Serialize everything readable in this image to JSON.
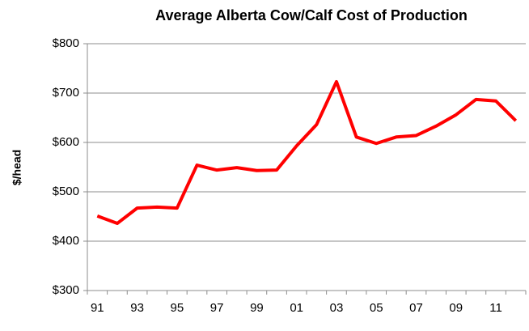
{
  "chart_data": {
    "type": "line",
    "title": "Average  Alberta Cow/Calf Cost of Production",
    "y_label": "$/head",
    "categories": [
      "91",
      null,
      "93",
      null,
      "95",
      null,
      "97",
      null,
      "99",
      null,
      "01",
      null,
      "03",
      null,
      "05",
      null,
      "07",
      null,
      "09",
      null,
      "11",
      null
    ],
    "series": [
      {
        "name": "Cost of production",
        "color": "#ff0000",
        "values": [
          451,
          436,
          467,
          469,
          467,
          554,
          544,
          549,
          543,
          544,
          593,
          636,
          723,
          611,
          598,
          611,
          614,
          633,
          656,
          687,
          684,
          644
        ]
      }
    ],
    "ylim": [
      300,
      800
    ],
    "yticks": [
      {
        "value": 300,
        "label": "$300"
      },
      {
        "value": 400,
        "label": "$400"
      },
      {
        "value": 500,
        "label": "$500"
      },
      {
        "value": 600,
        "label": "$600"
      },
      {
        "value": 700,
        "label": "$700"
      },
      {
        "value": 800,
        "label": "$800"
      }
    ],
    "grid": true
  }
}
